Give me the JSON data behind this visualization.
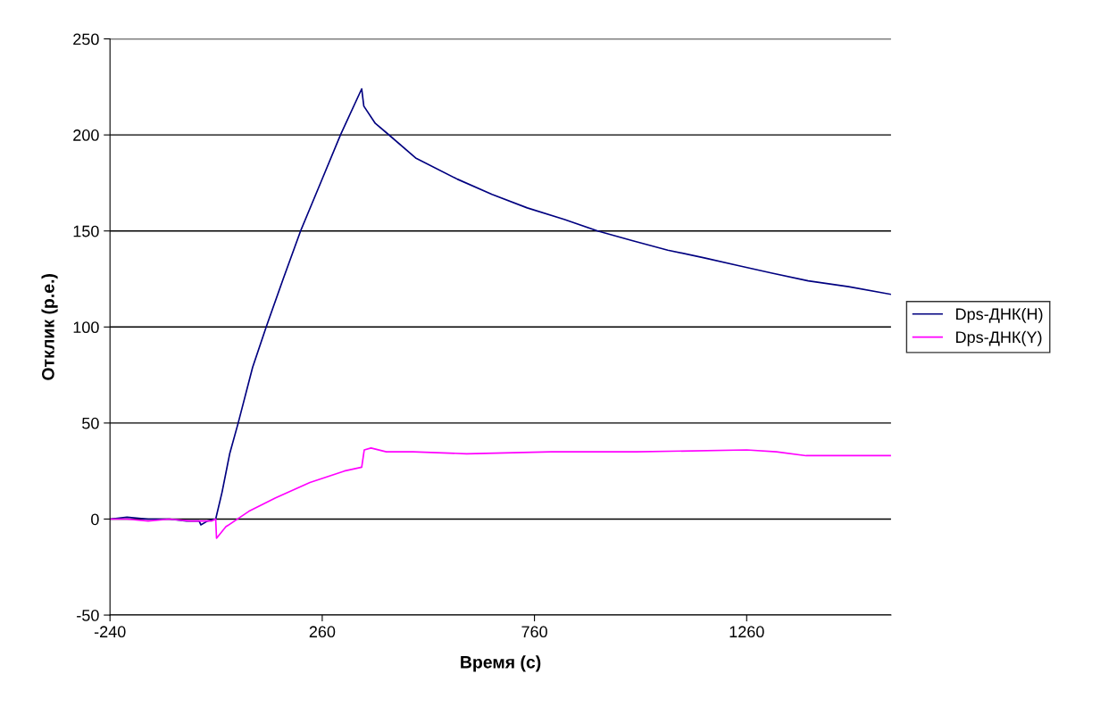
{
  "chart_data": {
    "type": "line",
    "xlabel": "Время (с)",
    "ylabel": "Отклик (р.е.)",
    "xlim": [
      -240,
      1600
    ],
    "xticks": [
      -240,
      260,
      760,
      1260
    ],
    "ylim": [
      -50,
      250
    ],
    "yticks": [
      -50,
      0,
      50,
      100,
      150,
      200,
      250
    ],
    "grid": "y",
    "legend": "right",
    "series": [
      {
        "name": "Dps-ДНК(H)",
        "color": "#000080",
        "x": [
          -240,
          -200,
          -150,
          -100,
          -60,
          -30,
          -26,
          -10,
          9,
          24,
          42,
          62,
          96,
          128,
          168,
          209,
          258,
          303,
          353,
          358,
          385,
          412,
          480,
          578,
          660,
          743,
          830,
          909,
          990,
          1074,
          1160,
          1240,
          1320,
          1405,
          1500,
          1600
        ],
        "values": [
          0,
          1,
          0,
          0,
          -1,
          -1,
          -3,
          -1,
          0,
          14,
          34,
          50,
          79,
          100,
          125,
          150,
          176,
          200,
          224,
          215,
          206,
          201,
          188,
          177,
          169,
          162,
          156,
          150,
          145,
          140,
          136,
          132,
          128,
          124,
          121,
          117
        ]
      },
      {
        "name": "Dps-ДНК(Y)",
        "color": "#ff00ff",
        "x": [
          -240,
          -200,
          -150,
          -100,
          -50,
          0,
          9,
          11,
          33,
          87,
          150,
          231,
          312,
          353,
          359,
          375,
          411,
          474,
          600,
          800,
          1000,
          1260,
          1330,
          1400,
          1500,
          1600
        ],
        "values": [
          0,
          0,
          -1,
          0,
          -1,
          -1,
          0,
          -10,
          -4,
          4,
          11,
          19,
          25,
          27,
          36,
          37,
          35,
          35,
          34,
          35,
          35,
          36,
          35,
          33,
          33,
          33
        ]
      }
    ]
  }
}
